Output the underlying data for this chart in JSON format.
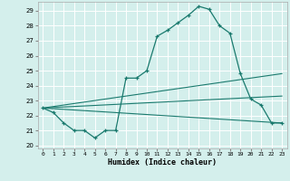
{
  "xlabel": "Humidex (Indice chaleur)",
  "bg_color": "#d4efec",
  "grid_color": "#ffffff",
  "line_color": "#1a7a6e",
  "xlim": [
    -0.5,
    23.5
  ],
  "ylim": [
    19.8,
    29.6
  ],
  "yticks": [
    20,
    21,
    22,
    23,
    24,
    25,
    26,
    27,
    28,
    29
  ],
  "xticks": [
    0,
    1,
    2,
    3,
    4,
    5,
    6,
    7,
    8,
    9,
    10,
    11,
    12,
    13,
    14,
    15,
    16,
    17,
    18,
    19,
    20,
    21,
    22,
    23
  ],
  "curve1_x": [
    0,
    1,
    2,
    3,
    4,
    5,
    6,
    7,
    8,
    9,
    10,
    11,
    12,
    13,
    14,
    15,
    16,
    17,
    18,
    19,
    20,
    21,
    22,
    23
  ],
  "curve1_y": [
    22.5,
    22.2,
    21.5,
    21.0,
    21.0,
    20.5,
    21.0,
    21.0,
    24.5,
    24.5,
    25.0,
    27.3,
    27.7,
    28.2,
    28.7,
    29.3,
    29.1,
    28.0,
    27.5,
    24.8,
    23.1,
    22.7,
    21.5,
    21.5
  ],
  "curve2_x": [
    0,
    23
  ],
  "curve2_y": [
    22.5,
    21.5
  ],
  "curve3_x": [
    0,
    23
  ],
  "curve3_y": [
    22.5,
    23.3
  ],
  "curve4_x": [
    0,
    23
  ],
  "curve4_y": [
    22.5,
    24.8
  ]
}
